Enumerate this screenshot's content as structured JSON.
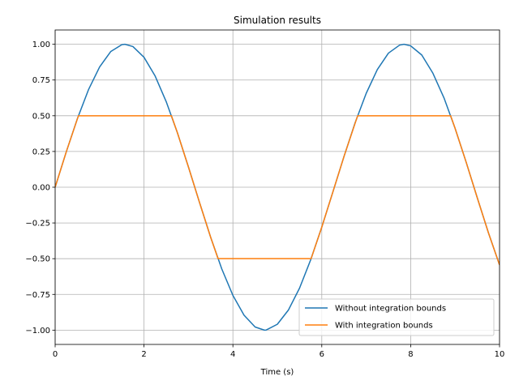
{
  "chart_data": {
    "type": "line",
    "title": "Simulation results",
    "xlabel": "Time (s)",
    "ylabel": "",
    "xlim": [
      0,
      10
    ],
    "ylim": [
      -1.1,
      1.1
    ],
    "xticks": [
      0,
      2,
      4,
      6,
      8,
      10
    ],
    "yticks": [
      -1.0,
      -0.75,
      -0.5,
      -0.25,
      0.0,
      0.25,
      0.5,
      0.75,
      1.0
    ],
    "xtick_labels": [
      "0",
      "2",
      "4",
      "6",
      "8",
      "10"
    ],
    "ytick_labels": [
      "−1.00",
      "−0.75",
      "−0.50",
      "−0.25",
      "0.00",
      "0.25",
      "0.50",
      "0.75",
      "1.00"
    ],
    "grid": true,
    "legend_position": "lower-right",
    "series": [
      {
        "name": "Without integration bounds",
        "color": "#1f77b4",
        "x": [
          0,
          0.25,
          0.5,
          0.75,
          1.0,
          1.25,
          1.5,
          1.57,
          1.75,
          2.0,
          2.25,
          2.5,
          2.75,
          3.0,
          3.25,
          3.5,
          3.75,
          4.0,
          4.25,
          4.5,
          4.71,
          4.75,
          5.0,
          5.25,
          5.5,
          5.75,
          6.0,
          6.25,
          6.5,
          6.75,
          7.0,
          7.25,
          7.5,
          7.75,
          7.85,
          8.0,
          8.25,
          8.5,
          8.75,
          9.0,
          9.25,
          9.5,
          9.75,
          10.0
        ],
        "y": [
          0.0,
          0.247,
          0.479,
          0.682,
          0.841,
          0.949,
          0.997,
          1.0,
          0.984,
          0.909,
          0.778,
          0.598,
          0.382,
          0.141,
          -0.108,
          -0.351,
          -0.572,
          -0.757,
          -0.895,
          -0.978,
          -1.0,
          -0.999,
          -0.959,
          -0.859,
          -0.706,
          -0.508,
          -0.279,
          -0.033,
          0.215,
          0.451,
          0.657,
          0.823,
          0.938,
          0.994,
          1.0,
          0.989,
          0.925,
          0.798,
          0.625,
          0.412,
          0.174,
          -0.075,
          -0.319,
          -0.544
        ]
      },
      {
        "name": "With integration bounds",
        "color": "#ff7f0e",
        "x": [
          0,
          0.25,
          0.524,
          2.618,
          2.75,
          3.0,
          3.25,
          3.5,
          3.665,
          5.76,
          6.0,
          6.25,
          6.5,
          6.807,
          8.901,
          9.0,
          9.25,
          9.5,
          9.75,
          10.0
        ],
        "y": [
          0.0,
          0.247,
          0.5,
          0.5,
          0.382,
          0.141,
          -0.108,
          -0.351,
          -0.5,
          -0.5,
          -0.279,
          -0.033,
          0.215,
          0.5,
          0.5,
          0.412,
          0.174,
          -0.075,
          -0.319,
          -0.544
        ]
      }
    ]
  }
}
